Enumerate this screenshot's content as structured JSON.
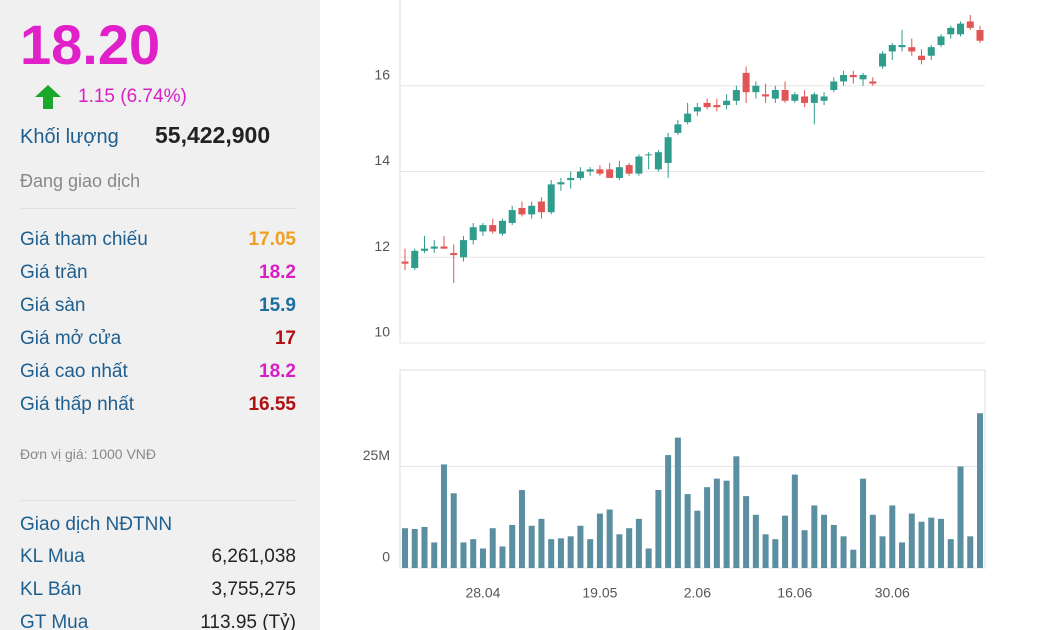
{
  "panel": {
    "price": "18.20",
    "change": "1.15 (6.74%)",
    "volume_label": "Khối lượng",
    "volume": "55,422,900",
    "status": "Đang giao dịch",
    "rows": [
      {
        "label": "Giá tham chiếu",
        "value": "17.05",
        "color": "#f0a020"
      },
      {
        "label": "Giá trần",
        "value": "18.2",
        "color": "#d81fc4"
      },
      {
        "label": "Giá sàn",
        "value": "15.9",
        "color": "#1f6f9e"
      },
      {
        "label": "Giá mở cửa",
        "value": "17",
        "color": "#b01010"
      },
      {
        "label": "Giá cao nhất",
        "value": "18.2",
        "color": "#d81fc4"
      },
      {
        "label": "Giá thấp nhất",
        "value": "16.55",
        "color": "#b01010"
      }
    ],
    "unit_note": "Đơn vị giá: 1000 VNĐ",
    "foreign_title": "Giao dịch NĐTNN",
    "foreign_rows": [
      {
        "label": "KL Mua",
        "value": "6,261,038"
      },
      {
        "label": "KL Bán",
        "value": "3,755,275"
      },
      {
        "label": "GT Mua",
        "value": "113.95 (Tỷ)"
      }
    ]
  },
  "chart_data": [
    {
      "type": "candlestick",
      "categories": [
        null,
        null,
        null,
        null,
        null,
        null,
        null,
        null,
        "28.04",
        null,
        null,
        null,
        null,
        null,
        null,
        null,
        null,
        null,
        null,
        null,
        "19.05",
        null,
        null,
        null,
        null,
        null,
        null,
        null,
        null,
        null,
        "2.06",
        null,
        null,
        null,
        null,
        null,
        null,
        null,
        null,
        null,
        "16.06",
        null,
        null,
        null,
        null,
        null,
        null,
        null,
        null,
        null,
        "30.06",
        null,
        null,
        null,
        null,
        null,
        null,
        null,
        null,
        null
      ],
      "open": [
        11.9,
        11.75,
        12.15,
        12.2,
        12.25,
        12.1,
        12.0,
        12.4,
        12.6,
        12.75,
        12.55,
        12.8,
        13.15,
        13.0,
        13.3,
        13.05,
        13.7,
        13.8,
        13.85,
        14.0,
        14.05,
        14.05,
        13.85,
        14.15,
        13.95,
        14.4,
        14.05,
        14.2,
        14.9,
        15.15,
        15.4,
        15.6,
        15.55,
        15.55,
        15.65,
        16.3,
        15.85,
        15.8,
        15.7,
        15.9,
        15.65,
        15.75,
        15.6,
        15.65,
        15.9,
        16.1,
        16.25,
        16.15,
        16.1,
        16.45,
        16.8,
        16.9,
        16.9,
        16.7,
        16.7,
        16.95,
        17.2,
        17.2,
        17.5,
        17.3
      ],
      "high": [
        12.2,
        12.2,
        12.5,
        12.4,
        12.5,
        12.3,
        12.5,
        12.8,
        12.8,
        12.9,
        12.9,
        13.2,
        13.3,
        13.3,
        13.4,
        13.8,
        13.85,
        14.0,
        14.1,
        14.1,
        14.15,
        14.2,
        14.25,
        14.2,
        14.4,
        14.45,
        14.5,
        14.9,
        15.2,
        15.6,
        15.6,
        15.7,
        15.7,
        15.8,
        16.0,
        16.45,
        16.1,
        16.05,
        16.0,
        16.1,
        15.85,
        15.9,
        15.85,
        15.85,
        16.2,
        16.35,
        16.35,
        16.3,
        16.2,
        16.8,
        17.0,
        17.3,
        17.1,
        16.85,
        16.95,
        17.2,
        17.4,
        17.5,
        17.65,
        17.4
      ],
      "low": [
        11.7,
        11.7,
        12.1,
        12.1,
        12.2,
        11.4,
        11.9,
        12.3,
        12.5,
        12.55,
        12.5,
        12.75,
        12.95,
        12.9,
        12.9,
        13.0,
        13.55,
        13.6,
        13.8,
        13.9,
        13.9,
        13.85,
        13.8,
        13.9,
        13.9,
        14.05,
        14.0,
        13.85,
        14.85,
        15.1,
        15.3,
        15.45,
        15.4,
        15.45,
        15.55,
        15.6,
        15.7,
        15.6,
        15.6,
        15.6,
        15.6,
        15.5,
        15.1,
        15.55,
        15.85,
        16.0,
        16.05,
        16.0,
        16.0,
        16.4,
        16.6,
        16.8,
        16.7,
        16.5,
        16.6,
        16.9,
        17.1,
        17.15,
        17.3,
        17.0
      ],
      "close": [
        11.85,
        12.15,
        12.2,
        12.25,
        12.2,
        12.05,
        12.4,
        12.7,
        12.75,
        12.6,
        12.85,
        13.1,
        13.0,
        13.2,
        13.05,
        13.7,
        13.75,
        13.85,
        14.0,
        14.05,
        13.95,
        13.85,
        14.1,
        13.95,
        14.35,
        14.4,
        14.45,
        14.8,
        15.1,
        15.35,
        15.5,
        15.5,
        15.5,
        15.65,
        15.9,
        15.85,
        16.0,
        15.75,
        15.9,
        15.65,
        15.8,
        15.6,
        15.8,
        15.75,
        16.1,
        16.25,
        16.2,
        16.25,
        16.05,
        16.75,
        16.95,
        16.95,
        16.8,
        16.6,
        16.9,
        17.15,
        17.35,
        17.45,
        17.35,
        17.05
      ],
      "up_color": "#2f9c8c",
      "down_color": "#e05555",
      "ylim": [
        10,
        18
      ],
      "yticks": [
        10,
        12,
        14,
        16
      ],
      "grid": true
    },
    {
      "type": "bar",
      "values": [
        9.8,
        9.6,
        10.1,
        6.3,
        25.5,
        18.4,
        6.3,
        7.1,
        4.8,
        9.8,
        5.3,
        10.6,
        19.2,
        10.4,
        12.1,
        7.1,
        7.3,
        7.8,
        10.4,
        7.1,
        13.4,
        14.4,
        8.3,
        9.8,
        12.1,
        4.8,
        19.2,
        27.8,
        32.1,
        18.2,
        14.1,
        19.9,
        22.0,
        21.5,
        27.5,
        17.7,
        13.1,
        8.3,
        7.1,
        12.9,
        23.0,
        9.3,
        15.4,
        13.1,
        10.6,
        7.8,
        4.5,
        22.0,
        13.1,
        7.8,
        15.4,
        6.3,
        13.4,
        11.4,
        12.4,
        12.1,
        7.1,
        25.0,
        7.8,
        38.1
      ],
      "color": "#5a8ea0",
      "ylim": [
        0,
        48.75
      ],
      "yticks": [
        0,
        {
          "value": 25,
          "label": "25M"
        }
      ],
      "grid": true
    }
  ]
}
